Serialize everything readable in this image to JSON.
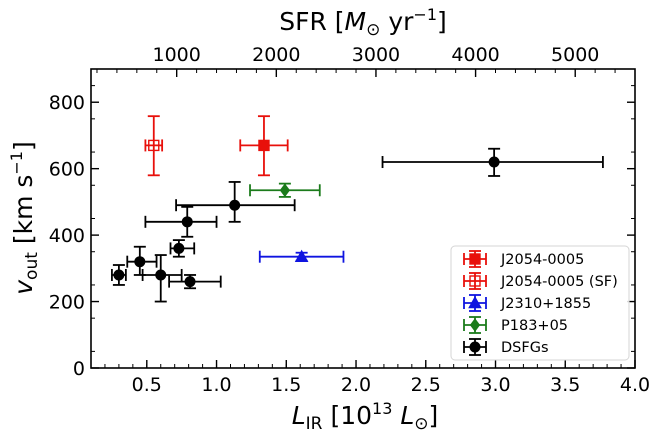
{
  "chart_data": {
    "type": "scatter",
    "x_axis": {
      "label_main": "L",
      "label_sub": "IR",
      "label_unit_open": " [10",
      "label_unit_exp": "13",
      "label_unit_sym": " L",
      "label_unit_sun": "⊙",
      "label_unit_close": "]",
      "range": [
        0.1,
        4.0
      ],
      "ticks": [
        0.5,
        1.0,
        1.5,
        2.0,
        2.5,
        3.0,
        3.5,
        4.0
      ],
      "tick_labels": [
        "0.5",
        "1.0",
        "1.5",
        "2.0",
        "2.5",
        "3.0",
        "3.5",
        "4.0"
      ]
    },
    "y_axis": {
      "label_main": "v",
      "label_sub": "out",
      "label_unit_open": " [km s",
      "label_unit_exp": "−1",
      "label_unit_close": "]",
      "range": [
        0,
        900
      ],
      "ticks": [
        0,
        200,
        400,
        600,
        800
      ],
      "tick_labels": [
        "0",
        "200",
        "400",
        "600",
        "800"
      ]
    },
    "top_axis": {
      "label_main": "SFR [",
      "label_unit_sym": "M",
      "label_unit_sun": "⊙",
      "label_unit_open": " yr",
      "label_unit_exp": "−1",
      "label_unit_close": "]",
      "conversion_sfr_per_lir13": 1400,
      "ticks": [
        1000,
        2000,
        3000,
        4000,
        5000
      ],
      "tick_labels": [
        "1000",
        "2000",
        "3000",
        "4000",
        "5000"
      ]
    },
    "series": [
      {
        "name": "J2054-0005",
        "color": "#e8100b",
        "marker": "square",
        "filled": true,
        "points": [
          {
            "x": 1.34,
            "y": 670,
            "xerr": [
              0.17,
              0.17
            ],
            "yerr": [
              90,
              88
            ]
          }
        ]
      },
      {
        "name": "J2054-0005 (SF)",
        "color": "#e8100b",
        "marker": "square",
        "filled": false,
        "points": [
          {
            "x": 0.55,
            "y": 670,
            "xerr": [
              0.06,
              0.06
            ],
            "yerr": [
              90,
              88
            ]
          }
        ]
      },
      {
        "name": "J2310+1855",
        "color": "#0f14e0",
        "marker": "triangle",
        "filled": true,
        "points": [
          {
            "x": 1.61,
            "y": 335,
            "xerr": [
              0.3,
              0.3
            ],
            "yerr": [
              12,
              12
            ]
          }
        ]
      },
      {
        "name": "P183+05",
        "color": "#1b7b1b",
        "marker": "diamond",
        "filled": true,
        "points": [
          {
            "x": 1.49,
            "y": 535,
            "xerr": [
              0.25,
              0.25
            ],
            "yerr": [
              20,
              20
            ]
          }
        ]
      },
      {
        "name": "DSFGs",
        "color": "#000000",
        "marker": "circle",
        "filled": true,
        "points": [
          {
            "x": 0.3,
            "y": 280,
            "xerr": [
              0.05,
              0.05
            ],
            "yerr": [
              30,
              30
            ]
          },
          {
            "x": 0.45,
            "y": 320,
            "xerr": [
              0.09,
              0.12
            ],
            "yerr": [
              40,
              45
            ]
          },
          {
            "x": 0.6,
            "y": 280,
            "xerr": [
              0.13,
              0.15
            ],
            "yerr": [
              80,
              60
            ]
          },
          {
            "x": 0.73,
            "y": 360,
            "xerr": [
              0.06,
              0.11
            ],
            "yerr": [
              25,
              25
            ]
          },
          {
            "x": 0.79,
            "y": 440,
            "xerr": [
              0.3,
              0.21
            ],
            "yerr": [
              45,
              45
            ]
          },
          {
            "x": 0.81,
            "y": 260,
            "xerr": [
              0.15,
              0.22
            ],
            "yerr": [
              20,
              20
            ]
          },
          {
            "x": 1.13,
            "y": 490,
            "xerr": [
              0.42,
              0.43
            ],
            "yerr": [
              50,
              70
            ]
          },
          {
            "x": 2.99,
            "y": 620,
            "xerr": [
              0.8,
              0.78
            ],
            "yerr": [
              42,
              40
            ]
          }
        ]
      }
    ],
    "legend": {
      "position": "lower-right",
      "entries": [
        "J2054-0005",
        "J2054-0005 (SF)",
        "J2310+1855",
        "P183+05",
        "DSFGs"
      ]
    },
    "grid": false
  }
}
